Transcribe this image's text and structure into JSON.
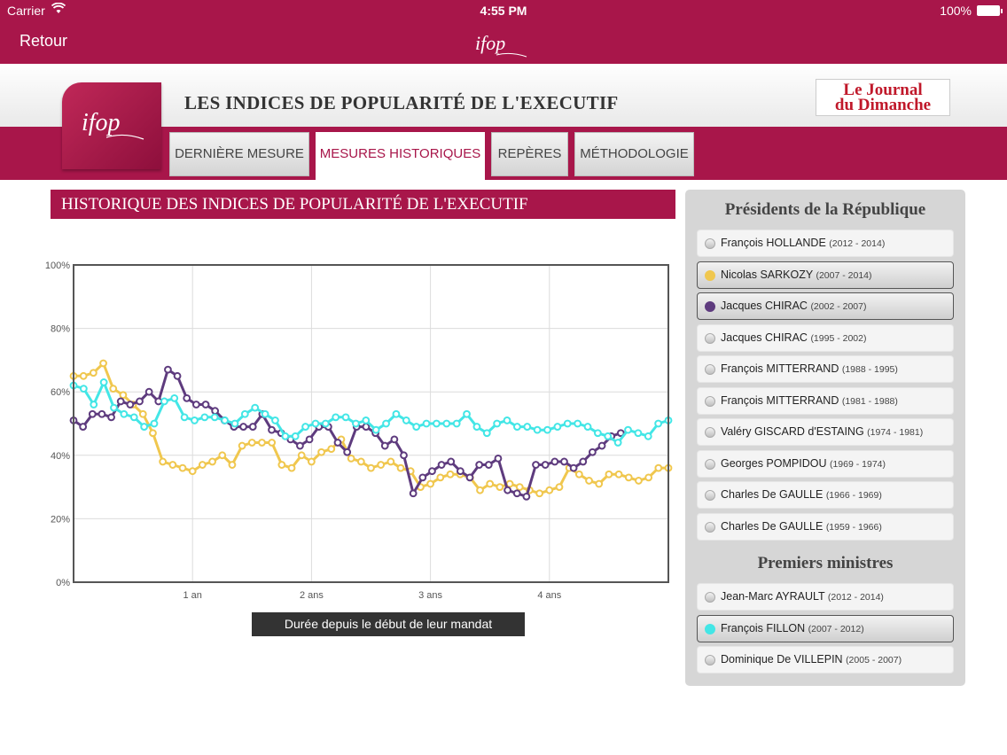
{
  "status_bar": {
    "carrier": "Carrier",
    "time": "4:55 PM",
    "battery": "100%"
  },
  "nav": {
    "back_label": "Retour",
    "logo_text": "ifop"
  },
  "header": {
    "title": "LES INDICES DE POPULARITÉ DE L'EXECUTIF",
    "ifop_logo": "ifop",
    "partner_logo_line1": "Le Journal",
    "partner_logo_line2": "du Dimanche"
  },
  "tabs": [
    {
      "label": "DERNIÈRE MESURE",
      "active": false
    },
    {
      "label": "MESURES HISTORIQUES",
      "active": true
    },
    {
      "label": "REPÈRES",
      "active": false
    },
    {
      "label": "MÉTHODOLOGIE",
      "active": false
    }
  ],
  "chart_title": "HISTORIQUE DES INDICES DE POPULARITÉ DE L'EXECUTIF",
  "chart_data": {
    "type": "line",
    "title": "HISTORIQUE DES INDICES DE POPULARITÉ DE L'EXECUTIF",
    "xlabel": "Durée depuis le début de leur mandat",
    "ylabel": "",
    "x_ticks": [
      "1 an",
      "2 ans",
      "3 ans",
      "4 ans"
    ],
    "x_tick_positions": [
      1,
      2,
      3,
      4
    ],
    "xlim": [
      0,
      5
    ],
    "y_ticks": [
      "0%",
      "20%",
      "40%",
      "60%",
      "80%",
      "100%"
    ],
    "y_tick_values": [
      0,
      20,
      40,
      60,
      80,
      100
    ],
    "ylim": [
      0,
      100
    ],
    "grid": true,
    "series": [
      {
        "color": "#f0c74e",
        "values": [
          65,
          65,
          66,
          69,
          61,
          59,
          56,
          53,
          47,
          38,
          37,
          36,
          35,
          37,
          38,
          40,
          37,
          43,
          44,
          44,
          44,
          37,
          36,
          40,
          38,
          41,
          42,
          45,
          39,
          38,
          36,
          37,
          38,
          36,
          35,
          30,
          31,
          33,
          34,
          34,
          33,
          29,
          31,
          30,
          31,
          30,
          29,
          28,
          29,
          30,
          36,
          34,
          32,
          31,
          34,
          34,
          33,
          32,
          33,
          36,
          36
        ]
      },
      {
        "color": "#5e3b7e",
        "values": [
          51,
          49,
          53,
          53,
          52,
          57,
          56,
          57,
          60,
          57,
          67,
          65,
          58,
          56,
          56,
          54,
          51,
          49,
          49,
          49,
          53,
          48,
          47,
          45,
          43,
          45,
          49,
          49,
          44,
          41,
          49,
          49,
          47,
          43,
          45,
          40,
          28,
          33,
          35,
          37,
          38,
          35,
          33,
          37,
          37,
          39,
          29,
          28,
          27,
          37,
          37,
          38,
          38,
          36,
          38,
          41,
          43,
          46,
          47
        ]
      },
      {
        "color": "#43e6e6",
        "values": [
          62,
          61,
          56,
          63,
          55,
          53,
          52,
          49,
          50,
          57,
          58,
          52,
          51,
          52,
          52,
          51,
          50,
          53,
          55,
          53,
          51,
          46,
          46,
          49,
          50,
          50,
          52,
          52,
          50,
          51,
          48,
          50,
          53,
          51,
          49,
          50,
          50,
          50,
          50,
          53,
          49,
          47,
          50,
          51,
          49,
          49,
          48,
          48,
          49,
          50,
          50,
          49,
          47,
          46,
          44,
          48,
          47,
          46,
          50,
          51
        ]
      }
    ]
  },
  "x_axis_caption": "Durée depuis le début de leur mandat",
  "sidebar": {
    "presidents_heading": "Présidents de la République",
    "presidents": [
      {
        "name": "François HOLLANDE",
        "years": "(2012 - 2014)",
        "selected": false,
        "color": ""
      },
      {
        "name": "Nicolas SARKOZY",
        "years": "(2007 - 2014)",
        "selected": true,
        "color": "#f0c74e"
      },
      {
        "name": "Jacques CHIRAC",
        "years": "(2002 - 2007)",
        "selected": true,
        "color": "#5e3b7e"
      },
      {
        "name": "Jacques CHIRAC",
        "years": "(1995 - 2002)",
        "selected": false,
        "color": ""
      },
      {
        "name": "François MITTERRAND",
        "years": "(1988 - 1995)",
        "selected": false,
        "color": ""
      },
      {
        "name": "François MITTERRAND",
        "years": "(1981 - 1988)",
        "selected": false,
        "color": ""
      },
      {
        "name": "Valéry GISCARD d'ESTAING",
        "years": "(1974 - 1981)",
        "selected": false,
        "color": ""
      },
      {
        "name": "Georges POMPIDOU",
        "years": "(1969 - 1974)",
        "selected": false,
        "color": ""
      },
      {
        "name": "Charles De GAULLE",
        "years": "(1966 - 1969)",
        "selected": false,
        "color": ""
      },
      {
        "name": "Charles De GAULLE",
        "years": "(1959 - 1966)",
        "selected": false,
        "color": ""
      }
    ],
    "ministers_heading": "Premiers ministres",
    "ministers": [
      {
        "name": "Jean-Marc AYRAULT",
        "years": "(2012 - 2014)",
        "selected": false,
        "color": ""
      },
      {
        "name": "François FILLON",
        "years": "(2007 - 2012)",
        "selected": true,
        "color": "#43e6e6"
      },
      {
        "name": "Dominique De VILLEPIN",
        "years": "(2005 - 2007)",
        "selected": false,
        "color": ""
      }
    ]
  }
}
